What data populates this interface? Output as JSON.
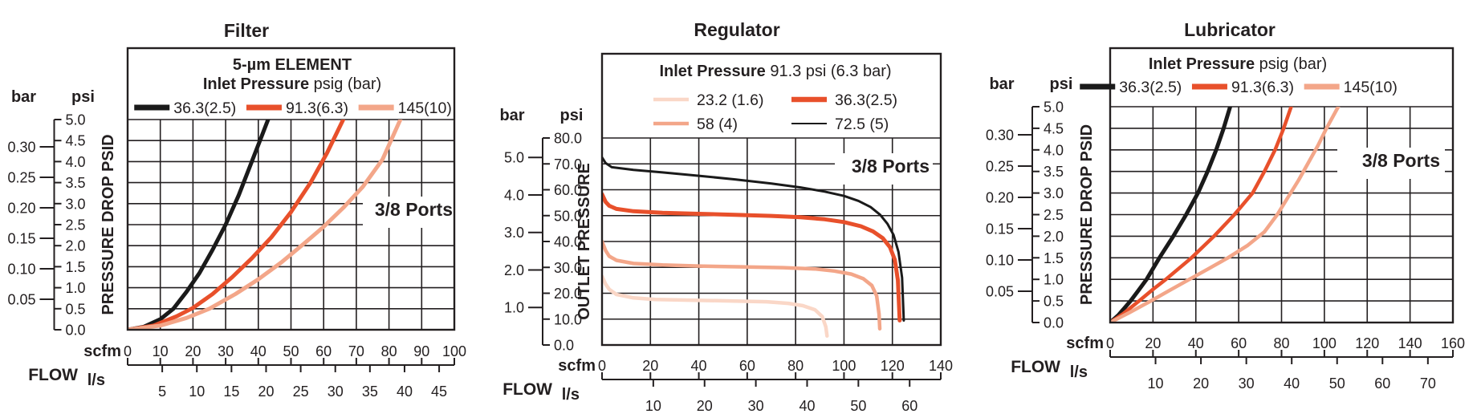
{
  "page": {
    "background": "#ffffff",
    "text_color": "#231f20",
    "grid_color": "#231f20"
  },
  "chart_data": [
    {
      "type": "line",
      "title": "Filter",
      "ports_label": "3/8 Ports",
      "legend": {
        "title_rows": [
          [
            {
              "t": "5-µm ELEMENT",
              "b": true
            }
          ],
          [
            {
              "t": "Inlet Pressure",
              "b": true
            },
            {
              "t": " psig (bar)",
              "b": false
            }
          ]
        ],
        "series_rows": [
          [
            0,
            1,
            2
          ]
        ]
      },
      "x_axis": {
        "flow_label": "FLOW",
        "primary_unit": "scfm",
        "secondary_unit": "l/s",
        "max": 100,
        "primary_ticks": [
          0,
          10,
          20,
          30,
          40,
          50,
          60,
          70,
          80,
          90,
          100
        ],
        "secondary_ticks": [
          5,
          10,
          15,
          20,
          25,
          30,
          35,
          40,
          45
        ],
        "scfm_per_ls": 2.1189
      },
      "y_axis": {
        "left_unit": "bar",
        "right_unit": "psi",
        "label": "PRESSURE DROP PSID",
        "max_psi": 5,
        "psi_ticks": [
          {
            "label": "0.0",
            "v": 0
          },
          {
            "label": "0.5",
            "v": 0.5
          },
          {
            "label": "1.0",
            "v": 1
          },
          {
            "label": "1.5",
            "v": 1.5
          },
          {
            "label": "2.0",
            "v": 2
          },
          {
            "label": "2.5",
            "v": 2.5
          },
          {
            "label": "3.0",
            "v": 3
          },
          {
            "label": "3.5",
            "v": 3.5
          },
          {
            "label": "4.0",
            "v": 4
          },
          {
            "label": "4.5",
            "v": 4.5
          },
          {
            "label": "5.0",
            "v": 5
          }
        ],
        "bar_ticks": [
          {
            "label": "0.05",
            "psi": 0.725
          },
          {
            "label": "0.10",
            "psi": 1.45
          },
          {
            "label": "0.15",
            "psi": 2.175
          },
          {
            "label": "0.20",
            "psi": 2.9
          },
          {
            "label": "0.25",
            "psi": 3.625
          },
          {
            "label": "0.30",
            "psi": 4.35
          }
        ]
      },
      "series": [
        {
          "label": "36.3(2.5)",
          "color": "#1a1a1a",
          "line_w": 5,
          "swatch_w": 7,
          "points": [
            [
              0,
              0
            ],
            [
              5,
              0.07
            ],
            [
              10,
              0.25
            ],
            [
              14,
              0.5
            ],
            [
              18,
              0.9
            ],
            [
              22,
              1.35
            ],
            [
              26,
              1.9
            ],
            [
              30,
              2.5
            ],
            [
              34,
              3.2
            ],
            [
              38,
              4.0
            ],
            [
              41,
              4.6
            ],
            [
              43,
              5.0
            ]
          ]
        },
        {
          "label": "91.3(6.3)",
          "color": "#e8502b",
          "line_w": 5,
          "swatch_w": 7,
          "points": [
            [
              0,
              0
            ],
            [
              8,
              0.1
            ],
            [
              15,
              0.32
            ],
            [
              20,
              0.52
            ],
            [
              26,
              0.85
            ],
            [
              32,
              1.25
            ],
            [
              38,
              1.7
            ],
            [
              44,
              2.2
            ],
            [
              50,
              2.8
            ],
            [
              56,
              3.5
            ],
            [
              61,
              4.2
            ],
            [
              66,
              5.0
            ]
          ]
        },
        {
          "label": "145(10)",
          "color": "#f3a689",
          "line_w": 5,
          "swatch_w": 7,
          "points": [
            [
              0,
              0
            ],
            [
              10,
              0.1
            ],
            [
              18,
              0.28
            ],
            [
              25,
              0.5
            ],
            [
              33,
              0.85
            ],
            [
              40,
              1.2
            ],
            [
              47,
              1.6
            ],
            [
              54,
              2.05
            ],
            [
              60,
              2.45
            ],
            [
              66,
              2.9
            ],
            [
              72,
              3.4
            ],
            [
              78,
              4.05
            ],
            [
              83.5,
              5.0
            ]
          ]
        }
      ]
    },
    {
      "type": "line",
      "title": "Regulator",
      "ports_label": "3/8 Ports",
      "legend": {
        "title_rows": [
          [
            {
              "t": "Inlet Pressure",
              "b": true
            },
            {
              "t": " 91.3 psi (6.3 bar)",
              "b": false
            }
          ]
        ],
        "series_rows": [
          [
            0,
            1
          ],
          [
            2,
            3
          ]
        ]
      },
      "x_axis": {
        "flow_label": "FLOW",
        "primary_unit": "scfm",
        "secondary_unit": "l/s",
        "max": 140,
        "primary_ticks": [
          0,
          20,
          40,
          60,
          80,
          100,
          120,
          140
        ],
        "secondary_ticks": [
          10,
          20,
          30,
          40,
          50,
          60
        ],
        "scfm_per_ls": 2.1189
      },
      "y_axis": {
        "left_unit": "bar",
        "right_unit": "psi",
        "label": "OUTLET PRESSURE",
        "max_psi": 80,
        "psi_ticks": [
          {
            "label": "0.0",
            "v": 0
          },
          {
            "label": "10.0",
            "v": 10
          },
          {
            "label": "20.0",
            "v": 20
          },
          {
            "label": "30.0",
            "v": 30
          },
          {
            "label": "40.0",
            "v": 40
          },
          {
            "label": "50.0",
            "v": 50
          },
          {
            "label": "60.0",
            "v": 60
          },
          {
            "label": "70.0",
            "v": 70
          },
          {
            "label": "80.0",
            "v": 80
          }
        ],
        "bar_ticks": [
          {
            "label": "1.0",
            "psi": 14.5
          },
          {
            "label": "2.0",
            "psi": 29.0
          },
          {
            "label": "3.0",
            "psi": 43.5
          },
          {
            "label": "4.0",
            "psi": 58.0
          },
          {
            "label": "5.0",
            "psi": 72.5
          }
        ]
      },
      "series": [
        {
          "label": "23.2 (1.6)",
          "color": "#fad7c7",
          "line_w": 4.5,
          "swatch_w": 4.5,
          "points": [
            [
              0,
              26.5
            ],
            [
              1.5,
              23.5
            ],
            [
              3,
              21.5
            ],
            [
              6,
              19.5
            ],
            [
              13,
              18.2
            ],
            [
              22,
              17.6
            ],
            [
              38,
              17.3
            ],
            [
              55,
              17
            ],
            [
              68,
              16.7
            ],
            [
              77,
              16.1
            ],
            [
              83,
              15.2
            ],
            [
              88,
              13.6
            ],
            [
              91,
              11
            ],
            [
              92.5,
              7
            ],
            [
              93,
              3.5
            ]
          ]
        },
        {
          "label": "36.3(2.5)",
          "color": "#e8502b",
          "line_w": 5,
          "swatch_w": 6.5,
          "points": [
            [
              0,
              58.3
            ],
            [
              1.5,
              55.3
            ],
            [
              3,
              53.8
            ],
            [
              6,
              52.6
            ],
            [
              13,
              51.7
            ],
            [
              25,
              51.1
            ],
            [
              40,
              50.7
            ],
            [
              55,
              50.3
            ],
            [
              70,
              49.9
            ],
            [
              82,
              49.4
            ],
            [
              92,
              48.6
            ],
            [
              100,
              47.5
            ],
            [
              107,
              45.9
            ],
            [
              112,
              43.9
            ],
            [
              116,
              41.3
            ],
            [
              119,
              37.8
            ],
            [
              121,
              33
            ],
            [
              122.3,
              25
            ],
            [
              123,
              9.5
            ]
          ]
        },
        {
          "label": "58 (4)",
          "color": "#f3a689",
          "line_w": 4.5,
          "swatch_w": 4.5,
          "points": [
            [
              0,
              40
            ],
            [
              1.5,
              36.5
            ],
            [
              3,
              34.3
            ],
            [
              6,
              32.7
            ],
            [
              13,
              31.5
            ],
            [
              25,
              30.9
            ],
            [
              40,
              30.5
            ],
            [
              58,
              30.2
            ],
            [
              75,
              29.9
            ],
            [
              88,
              29.4
            ],
            [
              96,
              28.6
            ],
            [
              103,
              27.4
            ],
            [
              108,
              25.6
            ],
            [
              111.5,
              23
            ],
            [
              113.5,
              19
            ],
            [
              114.5,
              12
            ],
            [
              114.8,
              6.3
            ]
          ]
        },
        {
          "label": "72.5 (5)",
          "color": "#1a1a1a",
          "line_w": 3,
          "swatch_w": 2,
          "points": [
            [
              0,
              72.5
            ],
            [
              1.5,
              70.3
            ],
            [
              4,
              68.7
            ],
            [
              13,
              67.7
            ],
            [
              25,
              66.7
            ],
            [
              40,
              65.4
            ],
            [
              55,
              64
            ],
            [
              70,
              62.4
            ],
            [
              82,
              60.9
            ],
            [
              92,
              59.3
            ],
            [
              100,
              57.6
            ],
            [
              106,
              55.7
            ],
            [
              111,
              53.3
            ],
            [
              115,
              50.3
            ],
            [
              118,
              46.8
            ],
            [
              120.5,
              42.5
            ],
            [
              122.5,
              36
            ],
            [
              124,
              26
            ],
            [
              124.7,
              9.5
            ]
          ]
        }
      ]
    },
    {
      "type": "line",
      "title": "Lubricator",
      "ports_label": "3/8 Ports",
      "legend": {
        "title_rows": [
          [
            {
              "t": "Inlet Pressure",
              "b": true
            },
            {
              "t": " psig (bar)",
              "b": false
            }
          ]
        ],
        "series_rows": [
          [
            0,
            1,
            2
          ]
        ]
      },
      "x_axis": {
        "flow_label": "FLOW",
        "primary_unit": "scfm",
        "secondary_unit": "l/s",
        "max": 160,
        "primary_ticks": [
          0,
          20,
          40,
          60,
          80,
          100,
          120,
          140,
          160
        ],
        "secondary_ticks": [
          10,
          20,
          30,
          40,
          50,
          60,
          70
        ],
        "scfm_per_ls": 2.1189
      },
      "y_axis": {
        "left_unit": "bar",
        "right_unit": "psi",
        "label": "PRESSURE DROP PSID",
        "max_psi": 5,
        "psi_ticks": [
          {
            "label": "0.0",
            "v": 0
          },
          {
            "label": "0.5",
            "v": 0.5
          },
          {
            "label": "1.0",
            "v": 1
          },
          {
            "label": "1.5",
            "v": 1.5
          },
          {
            "label": "2.0",
            "v": 2
          },
          {
            "label": "2.5",
            "v": 2.5
          },
          {
            "label": "3.0",
            "v": 3
          },
          {
            "label": "3.5",
            "v": 3.5
          },
          {
            "label": "4.0",
            "v": 4
          },
          {
            "label": "4.5",
            "v": 4.5
          },
          {
            "label": "5.0",
            "v": 5
          }
        ],
        "bar_ticks": [
          {
            "label": "0.05",
            "psi": 0.725
          },
          {
            "label": "0.10",
            "psi": 1.45
          },
          {
            "label": "0.15",
            "psi": 2.175
          },
          {
            "label": "0.20",
            "psi": 2.9
          },
          {
            "label": "0.25",
            "psi": 3.625
          },
          {
            "label": "0.30",
            "psi": 4.35
          }
        ]
      },
      "series": [
        {
          "label": "36.3(2.5)",
          "color": "#1a1a1a",
          "line_w": 5,
          "swatch_w": 7,
          "points": [
            [
              0,
              0
            ],
            [
              4,
              0.18
            ],
            [
              9.5,
              0.5
            ],
            [
              13,
              0.73
            ],
            [
              17,
              1.0
            ],
            [
              23,
              1.5
            ],
            [
              29.5,
              2.0
            ],
            [
              35.5,
              2.5
            ],
            [
              41,
              3.0
            ],
            [
              45.5,
              3.5
            ],
            [
              49.5,
              4.0
            ],
            [
              53,
              4.5
            ],
            [
              56,
              5.0
            ]
          ]
        },
        {
          "label": "91.3(6.3)",
          "color": "#e8502b",
          "line_w": 4.5,
          "swatch_w": 7,
          "points": [
            [
              0,
              0
            ],
            [
              6,
              0.2
            ],
            [
              13.5,
              0.5
            ],
            [
              20,
              0.77
            ],
            [
              26,
              1.0
            ],
            [
              38,
              1.5
            ],
            [
              48.5,
              2.0
            ],
            [
              58,
              2.5
            ],
            [
              66.5,
              3.0
            ],
            [
              72,
              3.5
            ],
            [
              77,
              4.0
            ],
            [
              81,
              4.5
            ],
            [
              84.5,
              5.0
            ]
          ]
        },
        {
          "label": "145(10)",
          "color": "#f3a689",
          "line_w": 4.5,
          "swatch_w": 7,
          "points": [
            [
              0,
              0
            ],
            [
              9,
              0.23
            ],
            [
              19,
              0.5
            ],
            [
              28,
              0.75
            ],
            [
              37,
              1.0
            ],
            [
              46,
              1.25
            ],
            [
              55,
              1.5
            ],
            [
              64,
              1.78
            ],
            [
              72,
              2.1
            ],
            [
              78,
              2.5
            ],
            [
              83,
              2.9
            ],
            [
              88,
              3.3
            ],
            [
              92.5,
              3.7
            ],
            [
              97,
              4.1
            ],
            [
              101,
              4.5
            ],
            [
              106.5,
              5.0
            ]
          ]
        }
      ]
    }
  ]
}
